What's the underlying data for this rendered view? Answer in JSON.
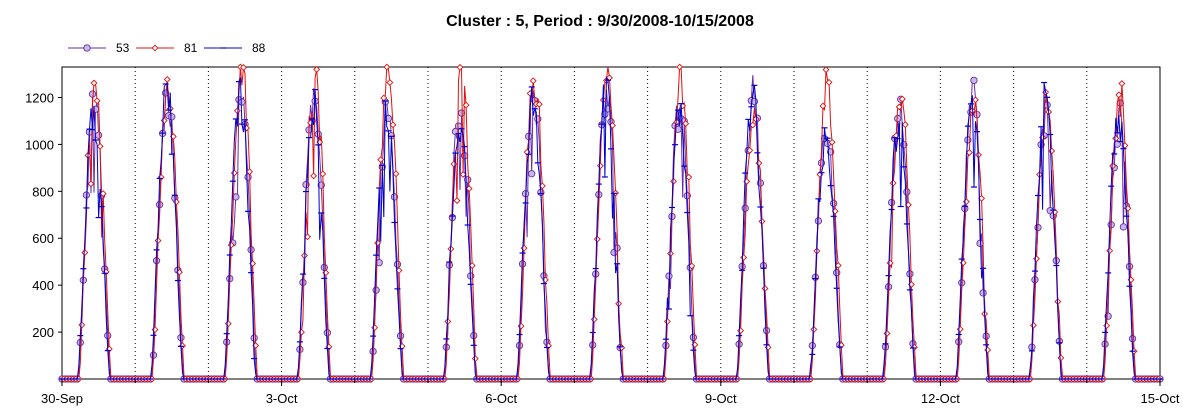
{
  "chart_data": {
    "type": "line",
    "title": "Cluster : 5, Period : 9/30/2008-10/15/2008",
    "xlabel": "",
    "ylabel": "",
    "x_range_days": [
      0,
      15
    ],
    "ylim": [
      0,
      1330
    ],
    "x_tick_labels": [
      {
        "day": 0,
        "label": "30-Sep"
      },
      {
        "day": 3,
        "label": "3-Oct"
      },
      {
        "day": 6,
        "label": "6-Oct"
      },
      {
        "day": 9,
        "label": "9-Oct"
      },
      {
        "day": 12,
        "label": "12-Oct"
      },
      {
        "day": 15,
        "label": "15-Oct"
      }
    ],
    "y_ticks": [
      200,
      400,
      600,
      800,
      1000,
      1200
    ],
    "grid": "vertical dotted lines at each day",
    "legend_position": "top-left",
    "series": [
      {
        "name": "53",
        "color": "#6a2ea8",
        "marker": "circle",
        "daily_peaks": [
          1170,
          1230,
          1230,
          1170,
          1120,
          1160,
          1180,
          1240,
          1170,
          1200,
          1100,
          1120,
          1200,
          1110,
          1120
        ]
      },
      {
        "name": "81",
        "color": "#e01010",
        "marker": "diamond",
        "daily_peaks": [
          1260,
          1250,
          1320,
          1290,
          1320,
          1290,
          1290,
          1320,
          1270,
          1190,
          1240,
          1200,
          1160,
          1210,
          1200
        ]
      },
      {
        "name": "88",
        "color": "#0000cc",
        "marker": "tick",
        "daily_peaks": [
          1120,
          1210,
          1190,
          1160,
          1130,
          1100,
          1170,
          1230,
          1100,
          1180,
          1050,
          1110,
          1160,
          1180,
          1120
        ]
      }
    ]
  }
}
